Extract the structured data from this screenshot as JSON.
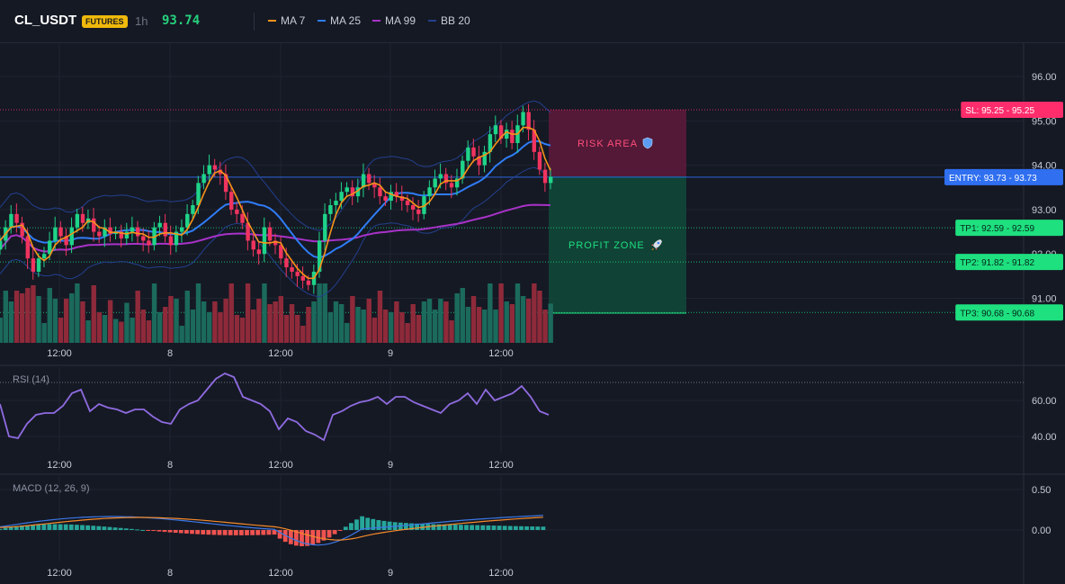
{
  "header": {
    "symbol": "CL_USDT",
    "badge": "FUTURES",
    "timeframe": "1h",
    "last_price": "93.74",
    "indicators": [
      {
        "label": "MA 7",
        "color": "#f7931a"
      },
      {
        "label": "MA 25",
        "color": "#2f7cf6"
      },
      {
        "label": "MA 99",
        "color": "#a832c8"
      },
      {
        "label": "BB 20",
        "color": "#23408e"
      }
    ]
  },
  "price_axis": {
    "ticks": [
      "96.00",
      "95.00",
      "94.00",
      "93.00",
      "92.00",
      "91.00"
    ],
    "tick_values": [
      96,
      95,
      94,
      93,
      92,
      91
    ]
  },
  "levels": [
    {
      "label": "SL: 95.25",
      "value": "95.25",
      "price": 95.25,
      "color": "#ff2d6b"
    },
    {
      "label": "ENTRY: 93.73",
      "value": "93.73",
      "price": 93.73,
      "color": "#2f6ff0"
    },
    {
      "label": "TP1: 92.59",
      "value": "92.59",
      "price": 92.59,
      "color": "#1ee07f"
    },
    {
      "label": "TP2: 91.82",
      "value": "91.82",
      "price": 91.82,
      "color": "#1ee07f"
    },
    {
      "label": "TP3: 90.68",
      "value": "90.68",
      "price": 90.68,
      "color": "#1ee07f"
    }
  ],
  "zones": {
    "risk_label": "RISK AREA",
    "profit_label": "PROFIT ZONE"
  },
  "time_axis": [
    "12:00",
    "8",
    "12:00",
    "9",
    "12:00"
  ],
  "rsi": {
    "label": "RSI (14)",
    "ticks": [
      "60.00",
      "40.00"
    ]
  },
  "macd": {
    "label": "MACD (12, 26, 9)",
    "ticks": [
      "0.50",
      "0.00"
    ]
  },
  "colors": {
    "up": "#1fd489",
    "down": "#f0345f",
    "vol_up": "#1b6a5c",
    "vol_down": "#8e2a3a",
    "rsi": "#8f6be0",
    "macd": "#3c78e6",
    "signal": "#f58a2b"
  }
}
